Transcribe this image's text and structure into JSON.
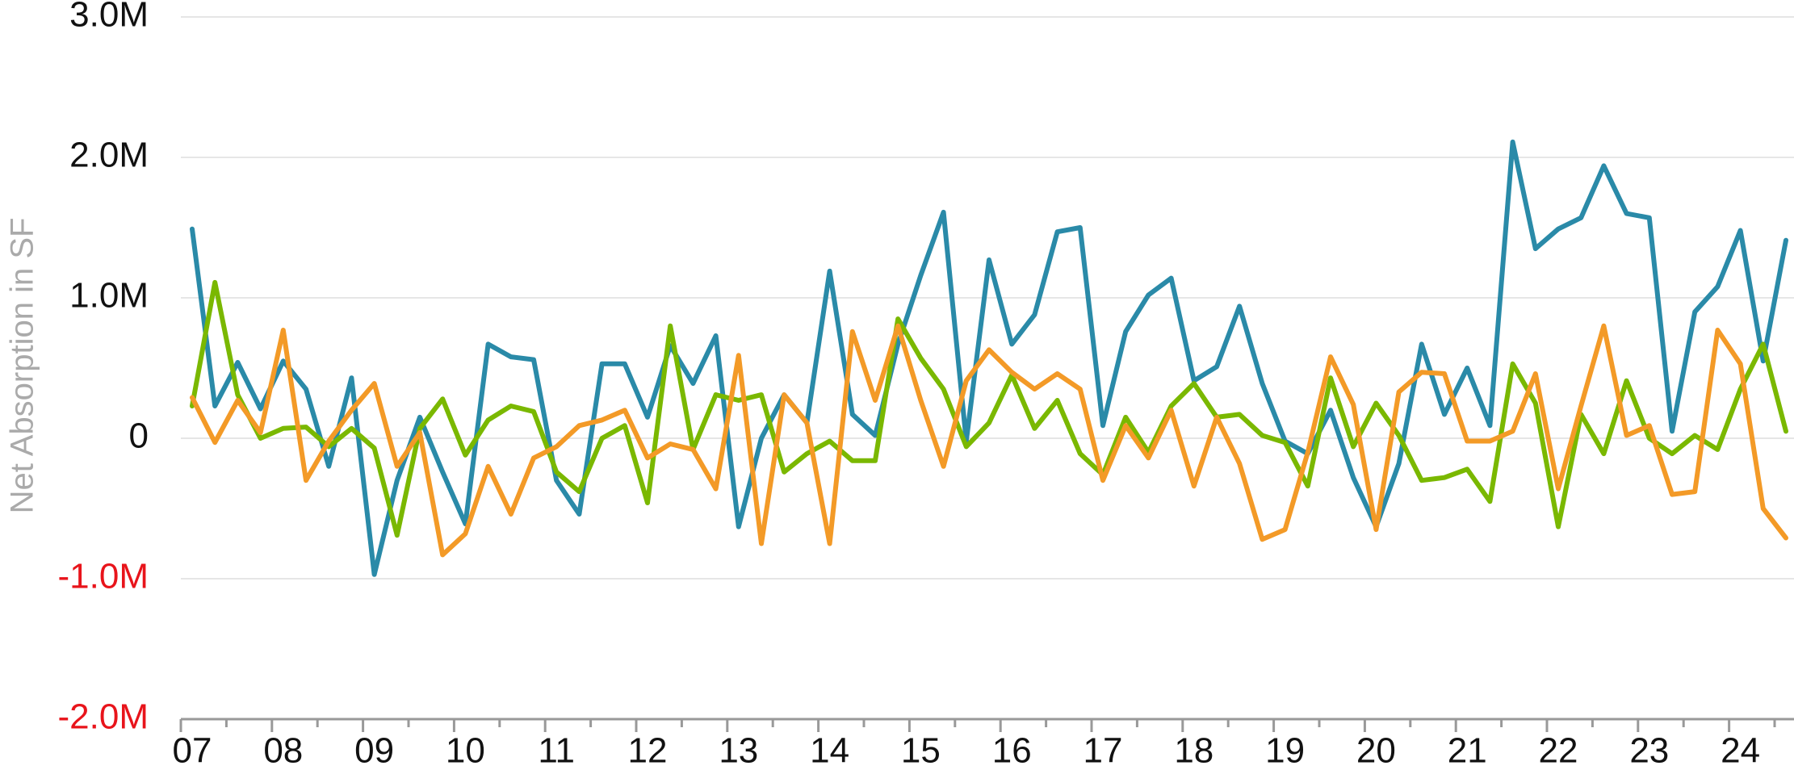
{
  "chart_data": {
    "type": "line",
    "y_axis_label": "Net Absorption in SF",
    "categories": [
      "07",
      null,
      null,
      null,
      "08",
      null,
      null,
      null,
      "09",
      null,
      null,
      null,
      "10",
      null,
      null,
      null,
      "11",
      null,
      null,
      null,
      "12",
      null,
      null,
      null,
      "13",
      null,
      null,
      null,
      "14",
      null,
      null,
      null,
      "15",
      null,
      null,
      null,
      "16",
      null,
      null,
      null,
      "17",
      null,
      null,
      null,
      "18",
      null,
      null,
      null,
      "19",
      null,
      null,
      null,
      "20",
      null,
      null,
      null,
      "21",
      null,
      null,
      null,
      "22",
      null,
      null,
      null,
      "23",
      null,
      null,
      null,
      "24",
      null,
      null
    ],
    "series": [
      {
        "color": "#2a8aa8",
        "values": [
          1490000,
          230000,
          540000,
          210000,
          550000,
          350000,
          -200000,
          430000,
          -970000,
          -300000,
          150000,
          -240000,
          -610000,
          670000,
          580000,
          560000,
          -300000,
          -540000,
          530000,
          530000,
          150000,
          660000,
          390000,
          730000,
          -630000,
          0,
          310000,
          110000,
          1190000,
          170000,
          20000,
          670000,
          1160000,
          1610000,
          -20000,
          1270000,
          670000,
          880000,
          1470000,
          1500000,
          90000,
          760000,
          1020000,
          1140000,
          410000,
          510000,
          940000,
          390000,
          -20000,
          -110000,
          200000,
          -280000,
          -630000,
          -180000,
          670000,
          170000,
          500000,
          90000,
          2110000,
          1350000,
          1490000,
          1570000,
          1940000,
          1600000,
          1570000,
          50000,
          900000,
          1080000,
          1480000,
          550000,
          1410000
        ]
      },
      {
        "color": "#7ab800",
        "values": [
          230000,
          1110000,
          310000,
          0,
          70000,
          80000,
          -60000,
          70000,
          -70000,
          -690000,
          70000,
          280000,
          -120000,
          130000,
          230000,
          190000,
          -240000,
          -380000,
          0,
          90000,
          -460000,
          800000,
          -80000,
          310000,
          270000,
          310000,
          -240000,
          -110000,
          -20000,
          -160000,
          -160000,
          850000,
          570000,
          350000,
          -60000,
          110000,
          450000,
          70000,
          270000,
          -110000,
          -260000,
          150000,
          -100000,
          230000,
          390000,
          150000,
          170000,
          20000,
          -30000,
          -340000,
          430000,
          -60000,
          250000,
          20000,
          -300000,
          -280000,
          -220000,
          -450000,
          530000,
          250000,
          -630000,
          170000,
          -110000,
          410000,
          0,
          -110000,
          20000,
          -80000,
          350000,
          670000,
          50000
        ]
      },
      {
        "color": "#f39a27",
        "values": [
          290000,
          -30000,
          270000,
          40000,
          770000,
          -300000,
          -20000,
          200000,
          390000,
          -200000,
          40000,
          -830000,
          -680000,
          -200000,
          -540000,
          -140000,
          -60000,
          90000,
          130000,
          200000,
          -140000,
          -40000,
          -80000,
          -360000,
          590000,
          -750000,
          310000,
          110000,
          -750000,
          760000,
          270000,
          800000,
          270000,
          -200000,
          410000,
          630000,
          470000,
          350000,
          460000,
          350000,
          -300000,
          90000,
          -140000,
          200000,
          -340000,
          150000,
          -180000,
          -720000,
          -650000,
          -100000,
          580000,
          240000,
          -650000,
          330000,
          470000,
          460000,
          -20000,
          -20000,
          50000,
          460000,
          -360000,
          230000,
          800000,
          20000,
          90000,
          -400000,
          -380000,
          770000,
          530000,
          -500000,
          -710000
        ]
      }
    ],
    "ylim": [
      -2000000,
      3000000
    ],
    "yticks": [
      {
        "value": -2000000,
        "label": "-2.0M"
      },
      {
        "value": -1000000,
        "label": "-1.0M"
      },
      {
        "value": 0,
        "label": "0"
      },
      {
        "value": 1000000,
        "label": "1.0M"
      },
      {
        "value": 2000000,
        "label": "2.0M"
      },
      {
        "value": 3000000,
        "label": "3.0M"
      }
    ],
    "grid": true,
    "negative_tick_color": "#e8141b"
  }
}
